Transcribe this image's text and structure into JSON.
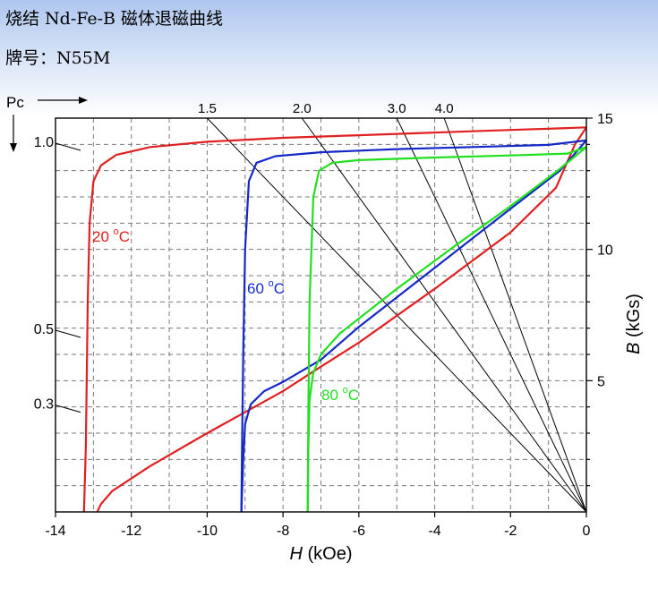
{
  "header": {
    "title": "烧结 Nd-Fe-B 磁体退磁曲线",
    "brand_label": "牌号：",
    "brand_value": "N55M"
  },
  "chart_data": {
    "type": "line",
    "xlabel_italic": "H",
    "xlabel_unit": "(kOe)",
    "ylabel_italic": "B",
    "ylabel_unit": "(kGs)",
    "xlim": [
      -14,
      0
    ],
    "ylim": [
      0,
      15
    ],
    "x_ticks": [
      -14,
      -12,
      -10,
      -8,
      -6,
      -4,
      -2,
      0
    ],
    "y_ticks": [
      5,
      10,
      15
    ],
    "grid": true,
    "pc_axis_label": "Pc",
    "pc_ticks": [
      {
        "label": "1.0",
        "value": 1.0
      },
      {
        "label": "0.5",
        "value": 0.5
      },
      {
        "label": "0.3",
        "value": 0.3
      }
    ],
    "load_lines": [
      {
        "label": "1.5",
        "value": 1.5
      },
      {
        "label": "2.0",
        "value": 2.0
      },
      {
        "label": "3.0",
        "value": 3.0
      },
      {
        "label": "4.0",
        "value": 4.0
      }
    ],
    "series": [
      {
        "name": "20 °C",
        "label_main": "20 ",
        "label_sup": "o",
        "label_unit": "C",
        "color": "#e02020",
        "hc_curve": [
          [
            -13.25,
            0
          ],
          [
            -13.2,
            2.5
          ],
          [
            -13.15,
            8
          ],
          [
            -13.1,
            11
          ],
          [
            -13.0,
            12.6
          ],
          [
            -12.8,
            13.2
          ],
          [
            -12.4,
            13.6
          ],
          [
            -11.5,
            13.9
          ],
          [
            -10,
            14.1
          ],
          [
            -8,
            14.25
          ],
          [
            -6,
            14.35
          ],
          [
            -4,
            14.45
          ],
          [
            -2,
            14.55
          ],
          [
            -0.5,
            14.62
          ],
          [
            0,
            14.65
          ]
        ],
        "b_curve": [
          [
            -12.9,
            0
          ],
          [
            -12.8,
            0.3
          ],
          [
            -12.5,
            0.8
          ],
          [
            -11.5,
            1.75
          ],
          [
            -10,
            3.0
          ],
          [
            -8,
            4.6
          ],
          [
            -7.2,
            5.35
          ],
          [
            -6,
            6.45
          ],
          [
            -4,
            8.5
          ],
          [
            -2,
            10.65
          ],
          [
            -0.8,
            12.35
          ],
          [
            -0.3,
            14.0
          ],
          [
            0,
            14.65
          ]
        ]
      },
      {
        "name": "60 °C",
        "label_main": "60 ",
        "label_sup": "o",
        "label_unit": "C",
        "color": "#1428c8",
        "hc_curve": [
          [
            -9.1,
            0
          ],
          [
            -9.08,
            2.5
          ],
          [
            -9.05,
            6
          ],
          [
            -9.0,
            10
          ],
          [
            -8.9,
            12.6
          ],
          [
            -8.7,
            13.3
          ],
          [
            -8.2,
            13.55
          ],
          [
            -7,
            13.7
          ],
          [
            -5,
            13.82
          ],
          [
            -3,
            13.9
          ],
          [
            -1,
            13.98
          ],
          [
            0,
            14.15
          ]
        ],
        "b_curve": [
          [
            -9.1,
            0
          ],
          [
            -9.05,
            2.0
          ],
          [
            -9.0,
            3.35
          ],
          [
            -8.85,
            4.1
          ],
          [
            -8.5,
            4.6
          ],
          [
            -8,
            4.95
          ],
          [
            -7,
            5.8
          ],
          [
            -6,
            7.05
          ],
          [
            -4,
            9.3
          ],
          [
            -2,
            11.55
          ],
          [
            -0.7,
            13.0
          ],
          [
            0,
            14.15
          ]
        ]
      },
      {
        "name": "80 °C",
        "label_main": "80 ",
        "label_sup": "o",
        "label_unit": "C",
        "color": "#20e020",
        "hc_curve": [
          [
            -7.35,
            0
          ],
          [
            -7.33,
            4
          ],
          [
            -7.3,
            8
          ],
          [
            -7.2,
            12
          ],
          [
            -7.05,
            13.0
          ],
          [
            -6.7,
            13.3
          ],
          [
            -6,
            13.4
          ],
          [
            -4,
            13.5
          ],
          [
            -2,
            13.58
          ],
          [
            -0.5,
            13.65
          ],
          [
            0,
            13.9
          ]
        ],
        "b_curve": [
          [
            -7.35,
            0
          ],
          [
            -7.33,
            2.5
          ],
          [
            -7.3,
            4.3
          ],
          [
            -7.2,
            5.3
          ],
          [
            -7.0,
            6.0
          ],
          [
            -6.5,
            6.8
          ],
          [
            -5,
            8.5
          ],
          [
            -3.5,
            10.1
          ],
          [
            -2,
            11.65
          ],
          [
            -0.8,
            12.95
          ],
          [
            0,
            13.9
          ]
        ]
      }
    ]
  }
}
